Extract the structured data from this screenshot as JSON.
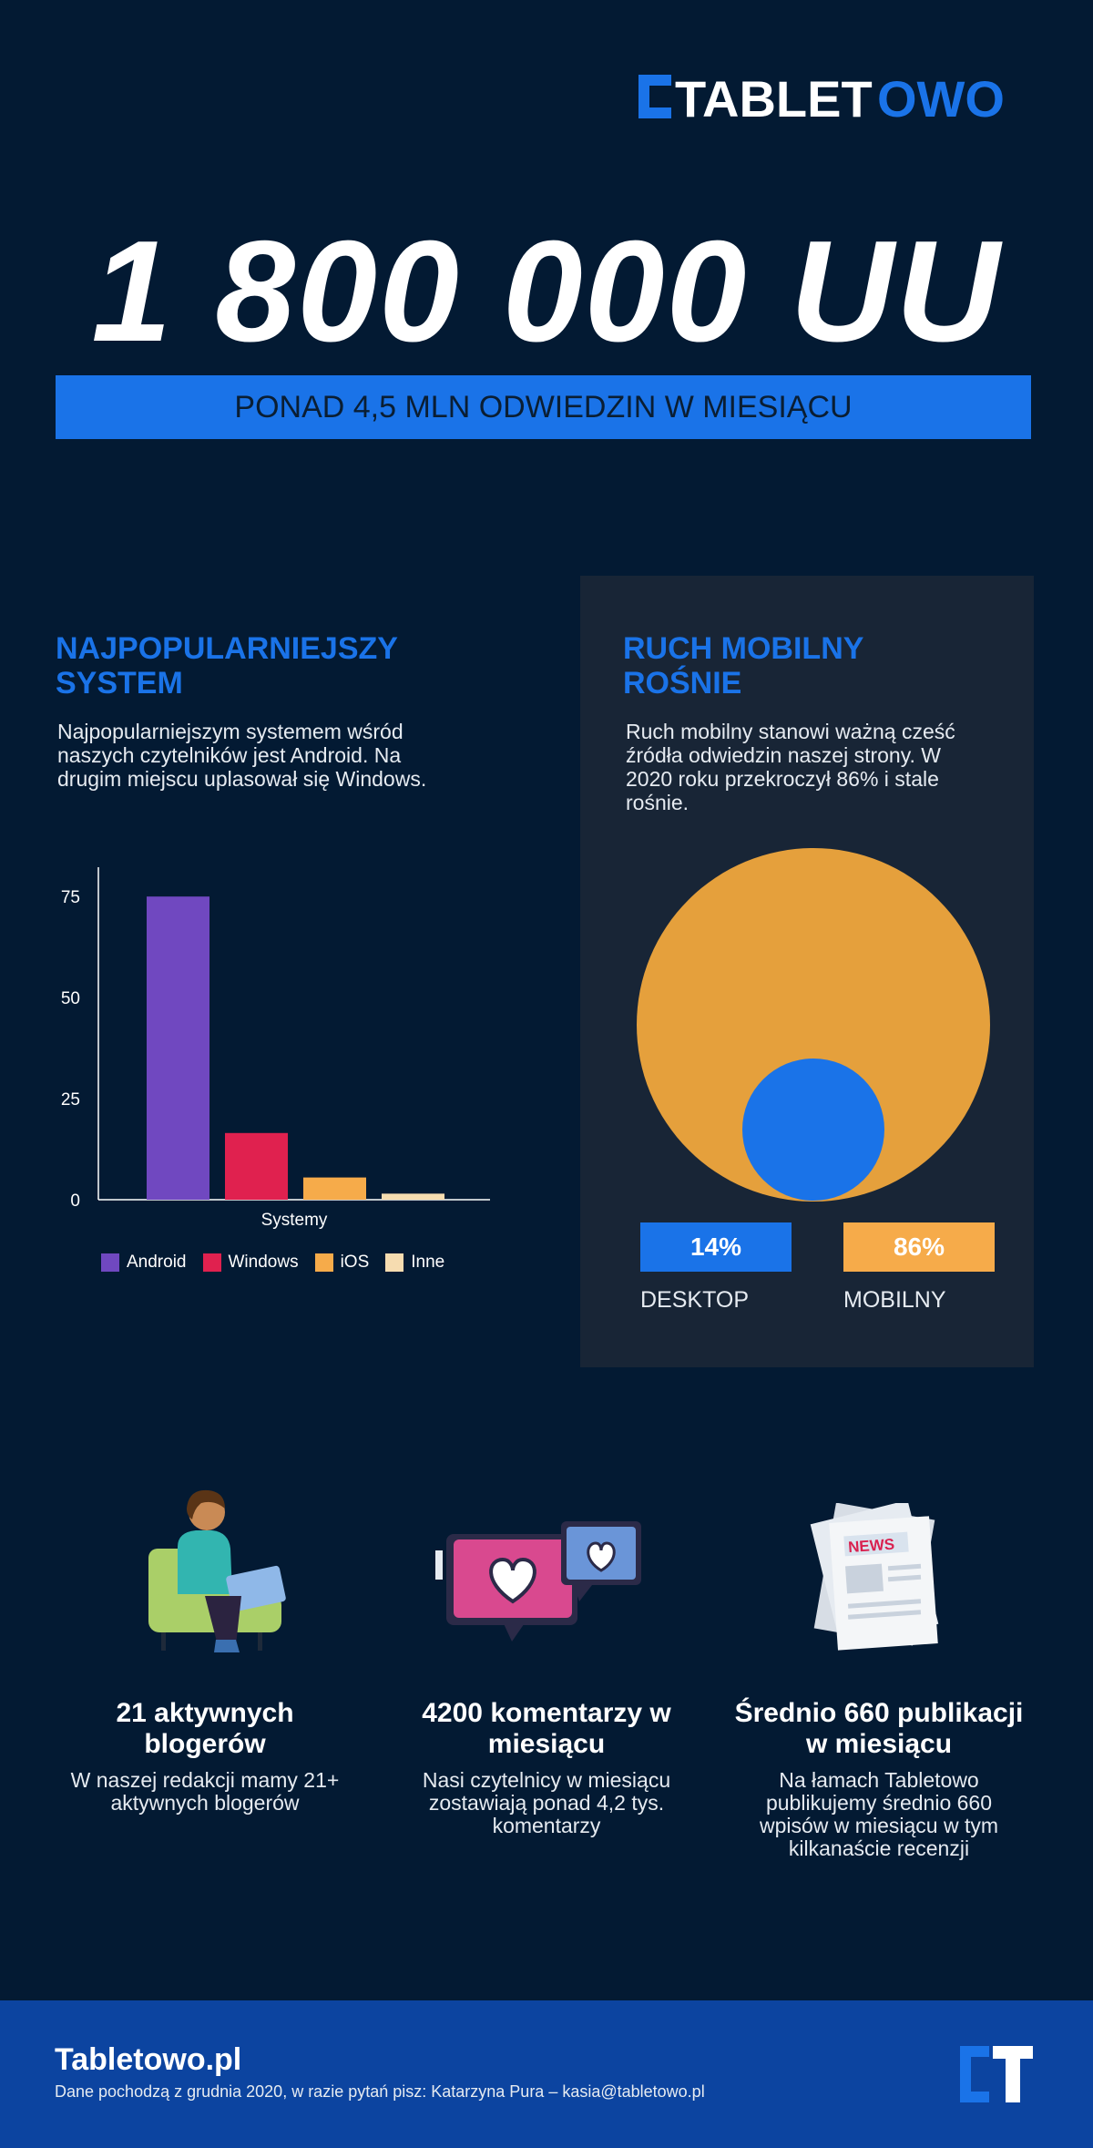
{
  "brand": {
    "logo_text": "TABLETOWO",
    "colors": {
      "primary": "#1a73e8",
      "dark": "#031a33",
      "footer": "#0c44a0"
    }
  },
  "hero": {
    "headline": "1 800 000 UU",
    "band": "PONAD 4,5 MLN ODWIEDZIN W MIESIĄCU"
  },
  "system": {
    "title_line1": "NAJPOPULARNIEJSZY",
    "title_line2": "SYSTEM",
    "text_line1": "Najpopularniejszym systemem wśród",
    "text_line2": "naszych czytelników jest Android. Na",
    "text_line3": "drugim miejscu uplasował się Windows."
  },
  "mobile": {
    "title_line1": "RUCH MOBILNY",
    "title_line2": "ROŚNIE",
    "text_line1": "Ruch mobilny stanowi ważną cześć",
    "text_line2": "źródła odwiedzin naszej strony. W",
    "text_line3": "2020 roku przekroczył 86% i stale",
    "text_line4": "rośnie.",
    "desktop_value": "14%",
    "desktop_label": "DESKTOP",
    "mobile_value": "86%",
    "mobile_label": "MOBILNY"
  },
  "chart_data": [
    {
      "type": "bar",
      "xlabel": "Systemy",
      "ylim": [
        0,
        80
      ],
      "yticks": [
        "0",
        "25",
        "50",
        "75"
      ],
      "series": [
        {
          "name": "Android",
          "values": [
            75
          ],
          "color": "#7048c0"
        },
        {
          "name": "Windows",
          "values": [
            16.5
          ],
          "color": "#e0214f"
        },
        {
          "name": "iOS",
          "values": [
            5.5
          ],
          "color": "#f6ab4a"
        },
        {
          "name": "Inne",
          "values": [
            1.5
          ],
          "color": "#f6dcb0"
        }
      ],
      "legend": "bottom"
    },
    {
      "type": "pie",
      "slices": [
        {
          "name": "DESKTOP",
          "value": 14,
          "color": "#1a73e8"
        },
        {
          "name": "MOBILNY",
          "value": 86,
          "color": "#e5a03c"
        }
      ]
    }
  ],
  "features": [
    {
      "icon": "blogger-illustration-icon",
      "title_line1": "21 aktywnych",
      "title_line2": "blogerów",
      "text_line1": "W naszej redakcji mamy 21+",
      "text_line2": "aktywnych blogerów"
    },
    {
      "icon": "comments-hearts-icon",
      "title_line1": "4200 komentarzy w",
      "title_line2": "miesiącu",
      "text_line1": "Nasi czytelnicy w miesiącu",
      "text_line2": "zostawiają ponad 4,2 tys.",
      "text_line3": "komentarzy"
    },
    {
      "icon": "news-papers-icon",
      "title_line1": "Średnio 660 publikacji",
      "title_line2": "w miesiącu",
      "text_line1": "Na łamach Tabletowo",
      "text_line2": "publikujemy średnio 660",
      "text_line3": "wpisów w miesiącu w tym",
      "text_line4": "kilkanaście recenzji"
    }
  ],
  "footer": {
    "title": "Tabletowo.pl",
    "note": "Dane pochodzą z grudnia 2020, w razie pytań pisz: Katarzyna Pura – kasia@tabletowo.pl"
  }
}
